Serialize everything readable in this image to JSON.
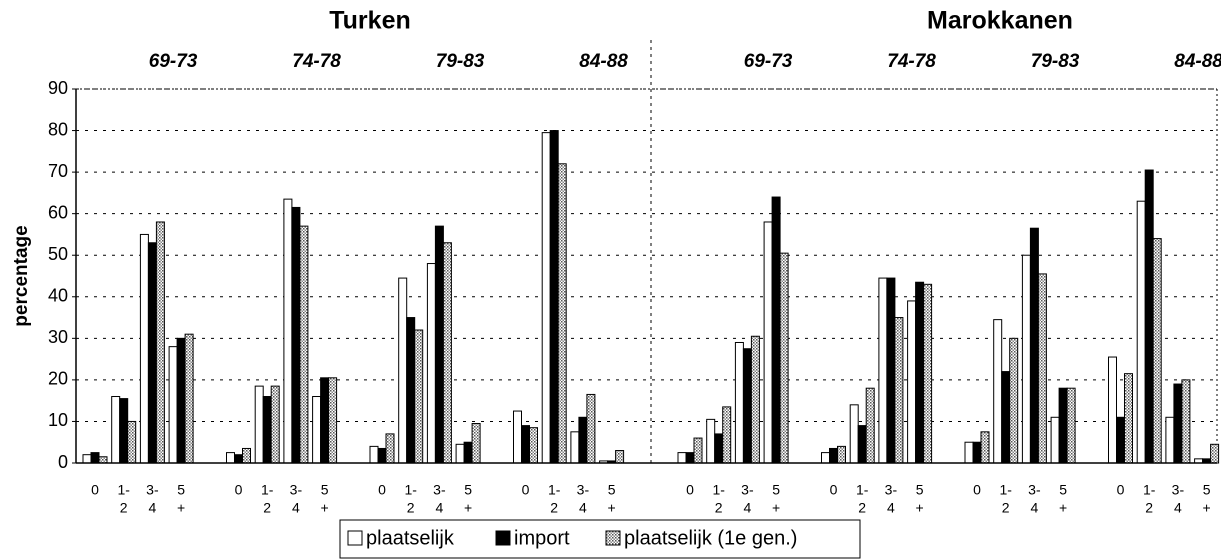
{
  "chart_data": {
    "type": "bar",
    "groups": [
      "Turken",
      "Marokkanen"
    ],
    "periods": [
      "69-73",
      "74-78",
      "79-83",
      "84-88",
      "69-73",
      "74-78",
      "79-83",
      "84-88"
    ],
    "ylabel": "percentage",
    "categories": [
      [
        "0"
      ],
      [
        "1-",
        "2"
      ],
      [
        "3-",
        "4"
      ],
      [
        "5",
        "+"
      ],
      [
        "0"
      ],
      [
        "1-",
        "2"
      ],
      [
        "3-",
        "4"
      ],
      [
        "5",
        "+"
      ],
      [
        "0"
      ],
      [
        "1-",
        "2"
      ],
      [
        "3-",
        "4"
      ],
      [
        "5",
        "+"
      ],
      [
        "0"
      ],
      [
        "1-",
        "2"
      ],
      [
        "3-",
        "4"
      ],
      [
        "5",
        "+"
      ],
      [
        "0"
      ],
      [
        "1-",
        "2"
      ],
      [
        "3-",
        "4"
      ],
      [
        "5",
        "+"
      ],
      [
        "0"
      ],
      [
        "1-",
        "2"
      ],
      [
        "3-",
        "4"
      ],
      [
        "5",
        "+"
      ],
      [
        "0"
      ],
      [
        "1-",
        "2"
      ],
      [
        "3-",
        "4"
      ],
      [
        "5",
        "+"
      ],
      [
        "0"
      ],
      [
        "1-",
        "2"
      ],
      [
        "3-",
        "4"
      ],
      [
        "5",
        "+"
      ]
    ],
    "series": [
      {
        "name": "plaatselijk",
        "color": "#ffffff",
        "values": [
          2,
          16,
          55,
          28,
          2.5,
          18.5,
          63.5,
          16,
          4,
          44.5,
          48,
          4.5,
          12.5,
          79.5,
          7.5,
          0.5,
          2.5,
          10.5,
          29,
          58,
          2.5,
          14,
          44.5,
          39,
          5,
          34.5,
          50,
          11,
          25.5,
          63,
          11,
          1
        ]
      },
      {
        "name": "import",
        "color": "#000000",
        "values": [
          2.5,
          15.5,
          53,
          30,
          2,
          16,
          61.5,
          20.5,
          3.5,
          35,
          57,
          5,
          9,
          80,
          11,
          0.5,
          2.5,
          7,
          27.5,
          64,
          3.5,
          9,
          44.5,
          43.5,
          5,
          22,
          56.5,
          18,
          11,
          70.5,
          19,
          1
        ]
      },
      {
        "name": "plaatselijk (1e gen.)",
        "color": "#c8c8c8",
        "hatch": true,
        "values": [
          1.5,
          10,
          58,
          31,
          3.5,
          18.5,
          57,
          20.5,
          7,
          32,
          53,
          9.5,
          8.5,
          72,
          16.5,
          3,
          6,
          13.5,
          30.5,
          50.5,
          4,
          18,
          35,
          43,
          7.5,
          30,
          45.5,
          18,
          21.5,
          54,
          20,
          4.5
        ]
      }
    ],
    "ylim": [
      0,
      90
    ],
    "yticks": [
      0,
      10,
      20,
      30,
      40,
      50,
      60,
      70,
      80,
      90
    ],
    "grid": true
  }
}
